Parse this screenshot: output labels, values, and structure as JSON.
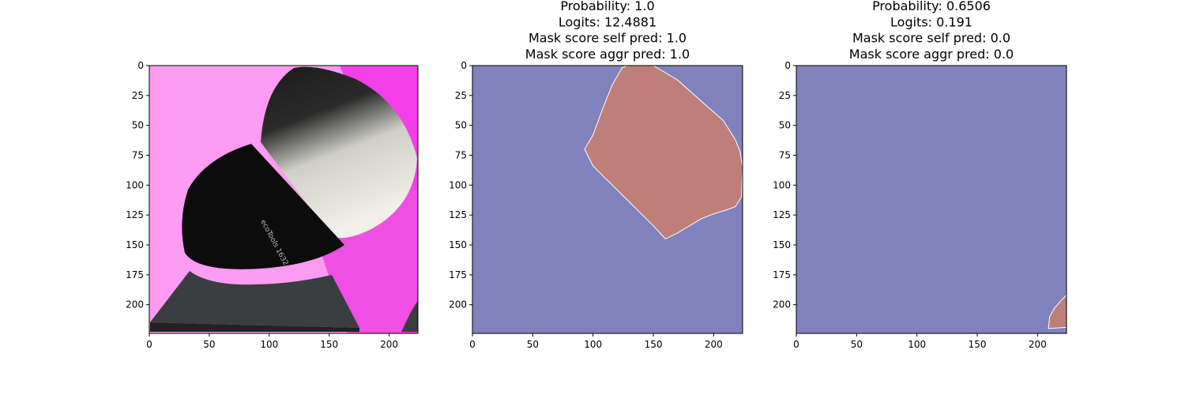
{
  "chart_data": [
    {
      "type": "image",
      "title_lines": [],
      "x_ticks": [
        0,
        50,
        100,
        150,
        200
      ],
      "y_ticks": [
        0,
        25,
        50,
        75,
        100,
        125,
        150,
        175,
        200
      ],
      "xlim": [
        0,
        224
      ],
      "ylim": [
        224,
        0
      ],
      "image_content": "makeup brush on pink background"
    },
    {
      "type": "heatmap",
      "title_lines": [
        "Probability: 1.0",
        "Logits: 12.4881",
        "Mask score self pred: 1.0",
        "Mask score aggr pred: 1.0"
      ],
      "x_ticks": [
        0,
        50,
        100,
        150,
        200
      ],
      "y_ticks": [
        0,
        25,
        50,
        75,
        100,
        125,
        150,
        175,
        200
      ],
      "xlim": [
        0,
        224
      ],
      "ylim": [
        224,
        0
      ],
      "background_color": "#8181bd",
      "mask_color": "#be7f7a",
      "mask_polygon": [
        [
          124,
          2
        ],
        [
          128,
          0
        ],
        [
          150,
          0
        ],
        [
          170,
          12
        ],
        [
          190,
          30
        ],
        [
          208,
          46
        ],
        [
          218,
          62
        ],
        [
          222,
          72
        ],
        [
          224,
          85
        ],
        [
          223,
          110
        ],
        [
          218,
          118
        ],
        [
          210,
          121
        ],
        [
          200,
          124
        ],
        [
          190,
          128
        ],
        [
          180,
          134
        ],
        [
          170,
          140
        ],
        [
          160,
          145
        ],
        [
          150,
          134
        ],
        [
          140,
          124
        ],
        [
          130,
          114
        ],
        [
          120,
          104
        ],
        [
          110,
          94
        ],
        [
          100,
          84
        ],
        [
          93,
          70
        ],
        [
          100,
          58
        ],
        [
          108,
          36
        ],
        [
          116,
          16
        ]
      ]
    },
    {
      "type": "heatmap",
      "title_lines": [
        "Probability: 0.6506",
        "Logits: 0.191",
        "Mask score self pred: 0.0",
        "Mask score aggr pred: 0.0"
      ],
      "x_ticks": [
        0,
        50,
        100,
        150,
        200
      ],
      "y_ticks": [
        0,
        25,
        50,
        75,
        100,
        125,
        150,
        175,
        200
      ],
      "xlim": [
        0,
        224
      ],
      "ylim": [
        224,
        0
      ],
      "background_color": "#8181bd",
      "mask_color": "#be7f7a",
      "mask_polygon": [
        [
          224,
          192
        ],
        [
          220,
          196
        ],
        [
          214,
          203
        ],
        [
          210,
          210
        ],
        [
          209,
          220
        ],
        [
          224,
          219
        ]
      ]
    }
  ]
}
